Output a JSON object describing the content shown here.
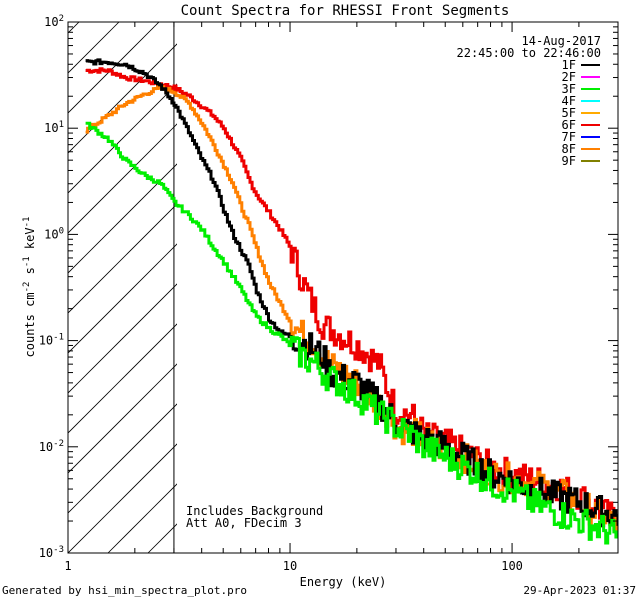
{
  "chart_data": {
    "type": "line",
    "title": "Count Spectra for RHESSI Front Segments",
    "xlabel": "Energy (keV)",
    "ylabel": {
      "base": "counts cm",
      "e1": "-2",
      "mid1": " s",
      "e2": "-1",
      "mid2": " keV",
      "e3": "-1"
    },
    "xscale": "log",
    "yscale": "log",
    "xlim": [
      1,
      300
    ],
    "ylim": [
      0.001,
      100
    ],
    "x_ticks": [
      {
        "value": 1,
        "label": "1"
      },
      {
        "value": 10,
        "label": "10"
      },
      {
        "value": 100,
        "label": "100"
      }
    ],
    "y_ticks": [
      {
        "value": 0.001,
        "base": "10",
        "exp": "-3"
      },
      {
        "value": 0.01,
        "base": "10",
        "exp": "-2"
      },
      {
        "value": 0.1,
        "base": "10",
        "exp": "-1"
      },
      {
        "value": 1,
        "base": "10",
        "exp": "0"
      },
      {
        "value": 10,
        "base": "10",
        "exp": "1"
      },
      {
        "value": 100,
        "base": "10",
        "exp": "2"
      }
    ],
    "attenuator_cutoff_keV": 3,
    "date": "14-Aug-2017",
    "time_range": "22:45:00 to 22:46:00",
    "annotations": [
      "Includes Background",
      "Att A0, FDecim 3"
    ],
    "legend": [
      {
        "name": "1F",
        "color": "#000000"
      },
      {
        "name": "2F",
        "color": "#ff00ff"
      },
      {
        "name": "3F",
        "color": "#00ee00"
      },
      {
        "name": "4F",
        "color": "#00ffff"
      },
      {
        "name": "5F",
        "color": "#ffaa00"
      },
      {
        "name": "6F",
        "color": "#ee0000"
      },
      {
        "name": "7F",
        "color": "#0000ff"
      },
      {
        "name": "8F",
        "color": "#ff8000"
      },
      {
        "name": "9F",
        "color": "#808000"
      }
    ],
    "series": [
      {
        "name": "6F",
        "color": "#ee0000",
        "x": [
          1.2,
          1.5,
          1.8,
          2.2,
          2.6,
          3.0,
          3.5,
          4.0,
          4.5,
          5.0,
          5.5,
          6.0,
          6.5,
          7.0,
          8.0,
          9.0,
          10,
          11,
          12,
          13,
          14,
          15,
          17,
          20,
          23,
          25,
          28,
          30,
          35,
          40,
          50,
          60,
          70,
          80,
          100,
          120,
          150,
          200,
          250,
          300
        ],
        "y": [
          35,
          35,
          30,
          28,
          26,
          24,
          20,
          16,
          13,
          10,
          7,
          5,
          3.3,
          2.4,
          1.6,
          1.1,
          0.75,
          0.42,
          0.27,
          0.19,
          0.14,
          0.13,
          0.11,
          0.09,
          0.07,
          0.06,
          0.03,
          0.022,
          0.02,
          0.013,
          0.011,
          0.009,
          0.0075,
          0.0065,
          0.0055,
          0.005,
          0.0045,
          0.0035,
          0.0025,
          0.002
        ]
      },
      {
        "name": "8F",
        "color": "#ff8000",
        "x": [
          1.2,
          1.5,
          1.8,
          2.2,
          2.6,
          3.0,
          3.5,
          4.0,
          4.5,
          5.0,
          5.5,
          6.0,
          6.5,
          7.0,
          8.0,
          9.0,
          10,
          11,
          12,
          13,
          14,
          15,
          17,
          20,
          23,
          25,
          28,
          30,
          35,
          40,
          50,
          60,
          70,
          80,
          100,
          120,
          150,
          200,
          250,
          300
        ],
        "y": [
          9.5,
          13,
          17,
          21,
          24,
          22,
          17,
          11,
          7,
          4.5,
          3,
          1.8,
          1.2,
          0.75,
          0.35,
          0.22,
          0.15,
          0.12,
          0.1,
          0.09,
          0.07,
          0.06,
          0.05,
          0.04,
          0.03,
          0.025,
          0.02,
          0.015,
          0.014,
          0.012,
          0.009,
          0.008,
          0.0065,
          0.0055,
          0.005,
          0.0045,
          0.004,
          0.003,
          0.0022,
          0.0018
        ]
      },
      {
        "name": "1F",
        "color": "#000000",
        "x": [
          1.2,
          1.5,
          1.8,
          2.2,
          2.6,
          3.0,
          3.5,
          4.0,
          4.5,
          5.0,
          5.5,
          6.0,
          6.5,
          7.0,
          8.0,
          9.0,
          10,
          11,
          12,
          13,
          14,
          15,
          17,
          20,
          23,
          25,
          28,
          30,
          35,
          40,
          50,
          60,
          70,
          80,
          100,
          120,
          150,
          200,
          250,
          300
        ],
        "y": [
          42,
          42,
          40,
          33,
          25,
          17,
          9,
          5,
          3.2,
          1.7,
          1,
          0.7,
          0.5,
          0.3,
          0.16,
          0.12,
          0.11,
          0.1,
          0.09,
          0.08,
          0.07,
          0.05,
          0.045,
          0.04,
          0.03,
          0.026,
          0.02,
          0.017,
          0.014,
          0.012,
          0.01,
          0.008,
          0.0065,
          0.0055,
          0.0048,
          0.004,
          0.0035,
          0.003,
          0.0025,
          0.0022
        ]
      },
      {
        "name": "3F",
        "color": "#00ee00",
        "x": [
          1.2,
          1.5,
          1.8,
          2.2,
          2.6,
          3.0,
          3.5,
          4.0,
          4.5,
          5.0,
          5.5,
          6.0,
          6.5,
          7.0,
          8.0,
          9.0,
          10,
          11,
          12,
          13,
          14,
          15,
          17,
          20,
          23,
          25,
          28,
          30,
          35,
          40,
          50,
          60,
          70,
          80,
          100,
          120,
          150,
          200,
          250,
          300
        ],
        "y": [
          11,
          8,
          5,
          3.6,
          3,
          2,
          1.5,
          1.1,
          0.75,
          0.55,
          0.4,
          0.3,
          0.22,
          0.17,
          0.13,
          0.11,
          0.09,
          0.075,
          0.065,
          0.06,
          0.05,
          0.045,
          0.038,
          0.03,
          0.024,
          0.02,
          0.018,
          0.015,
          0.013,
          0.01,
          0.008,
          0.0065,
          0.0055,
          0.0045,
          0.0038,
          0.003,
          0.0025,
          0.002,
          0.0017,
          0.0014
        ]
      }
    ]
  },
  "footer": {
    "generated_by": "Generated by hsi_min_spectra_plot.pro",
    "timestamp": "29-Apr-2023 01:37"
  }
}
